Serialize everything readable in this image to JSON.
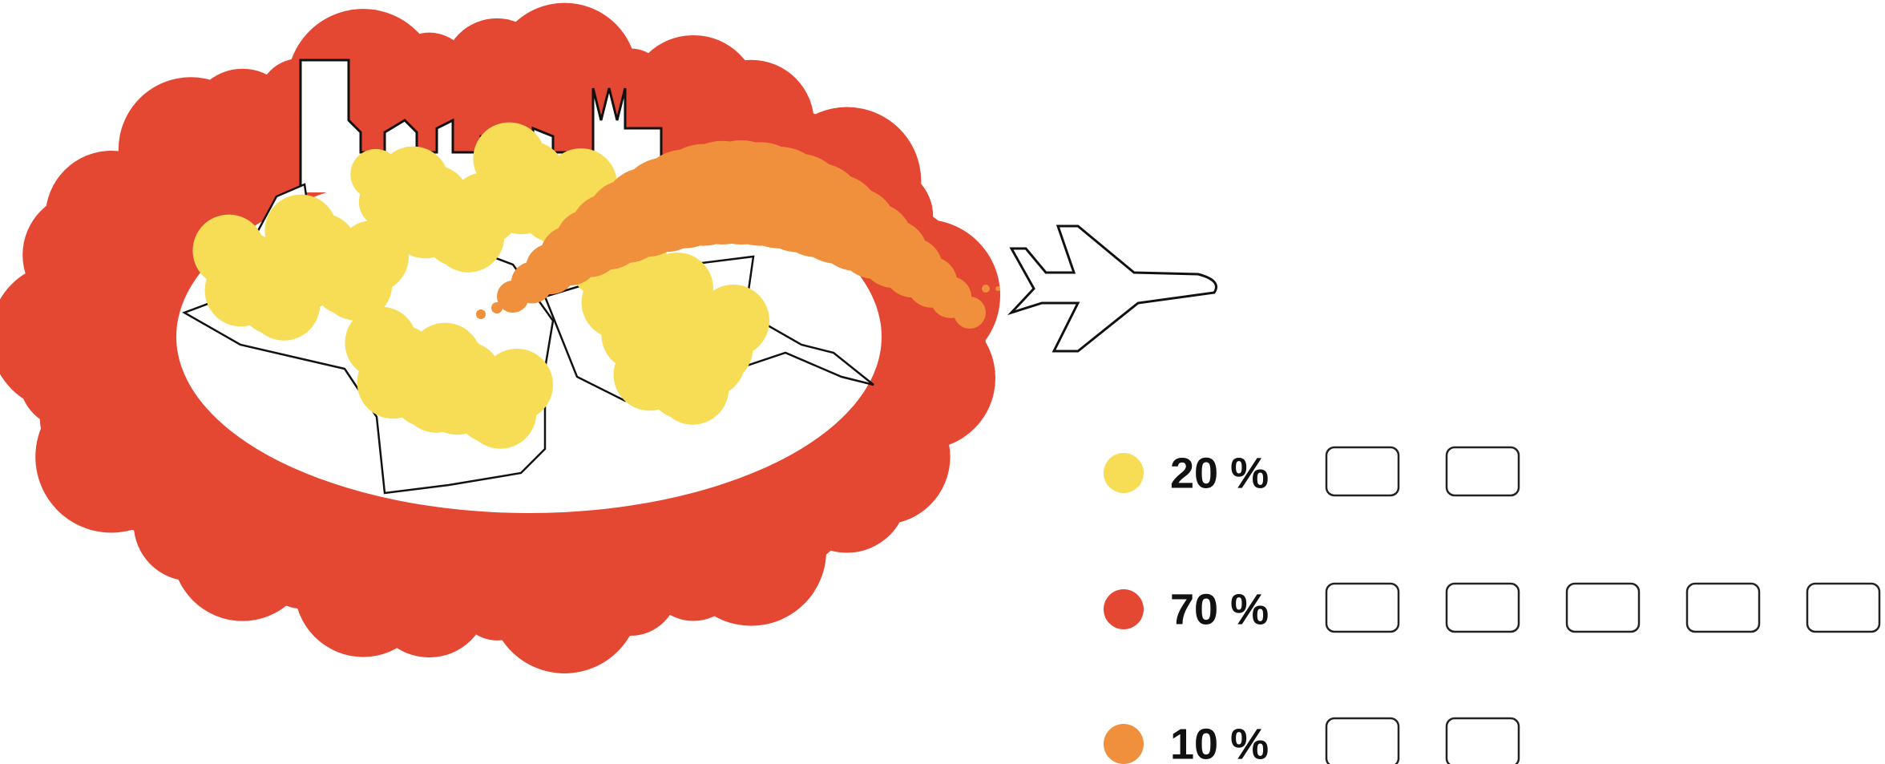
{
  "legend": [
    {
      "label": "20 %",
      "color": "#f7dc55"
    },
    {
      "label": "70 %",
      "color": "#e44732"
    },
    {
      "label": "10 %",
      "color": "#f08f3c"
    }
  ]
}
